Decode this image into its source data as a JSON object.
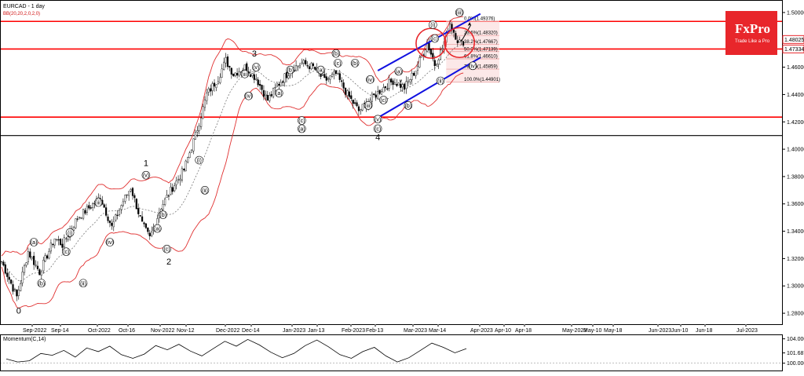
{
  "header": {
    "symbol_label": "EURCAD - 1 day",
    "indicator_label": "BB(20,20,2,0,2,0)"
  },
  "momentum_panel": {
    "label": "Momentum(C,14)",
    "ticks": [
      "104.000",
      "101.687",
      "100.000"
    ]
  },
  "branding": {
    "logo_text": "FxPro",
    "tagline": "Trade Like a Pro"
  },
  "colors": {
    "up": "#2e9d3a",
    "down": "#000000",
    "bands": "#e03030",
    "levels": "#ff0000",
    "channel": "#1010e0",
    "logo_bg": "#e8262b"
  },
  "chart_data": {
    "type": "candlestick",
    "title": "EURCAD - 1 day",
    "price_axis": {
      "ticks": [
        1.28,
        1.3,
        1.32,
        1.34,
        1.36,
        1.38,
        1.4,
        1.42,
        1.44,
        1.46,
        1.48,
        1.5
      ],
      "ylim": [
        1.272,
        1.508
      ],
      "current_price_label": "1.48025",
      "current_price_value": 1.48025,
      "second_price_label": "1.47334",
      "second_price_value": 1.47334
    },
    "time_axis": {
      "ticks": [
        "Sep-2022",
        "Sep-14",
        "Oct-2022",
        "Oct-16",
        "Nov-2022",
        "Nov-12",
        "Dec-2022",
        "Dec-14",
        "Jan-2023",
        "Jan-13",
        "Feb-2023",
        "Feb-13",
        "Mar-2023",
        "Mar-14",
        "Apr-2023",
        "Apr-10",
        "Apr-18",
        "May-2023",
        "May-10",
        "May-18",
        "Jun-2023",
        "Jun-10",
        "Jun-18",
        "Jul-2023"
      ]
    },
    "anchors": [
      {
        "i": 0,
        "p": 1.318
      },
      {
        "i": 8,
        "p": 1.292
      },
      {
        "i": 14,
        "p": 1.325
      },
      {
        "i": 20,
        "p": 1.31
      },
      {
        "i": 28,
        "p": 1.335
      },
      {
        "i": 32,
        "p": 1.33
      },
      {
        "i": 40,
        "p": 1.35
      },
      {
        "i": 46,
        "p": 1.357
      },
      {
        "i": 52,
        "p": 1.365
      },
      {
        "i": 58,
        "p": 1.343
      },
      {
        "i": 64,
        "p": 1.362
      },
      {
        "i": 68,
        "p": 1.372
      },
      {
        "i": 74,
        "p": 1.345
      },
      {
        "i": 78,
        "p": 1.335
      },
      {
        "i": 84,
        "p": 1.358
      },
      {
        "i": 90,
        "p": 1.372
      },
      {
        "i": 96,
        "p": 1.385
      },
      {
        "i": 102,
        "p": 1.41
      },
      {
        "i": 108,
        "p": 1.44
      },
      {
        "i": 114,
        "p": 1.452
      },
      {
        "i": 118,
        "p": 1.465
      },
      {
        "i": 122,
        "p": 1.455
      },
      {
        "i": 128,
        "p": 1.46
      },
      {
        "i": 134,
        "p": 1.452
      },
      {
        "i": 140,
        "p": 1.436
      },
      {
        "i": 146,
        "p": 1.448
      },
      {
        "i": 152,
        "p": 1.458
      },
      {
        "i": 158,
        "p": 1.463
      },
      {
        "i": 164,
        "p": 1.46
      },
      {
        "i": 170,
        "p": 1.45
      },
      {
        "i": 176,
        "p": 1.455
      },
      {
        "i": 182,
        "p": 1.44
      },
      {
        "i": 188,
        "p": 1.428
      },
      {
        "i": 194,
        "p": 1.436
      },
      {
        "i": 200,
        "p": 1.444
      },
      {
        "i": 206,
        "p": 1.45
      },
      {
        "i": 212,
        "p": 1.445
      },
      {
        "i": 218,
        "p": 1.458
      },
      {
        "i": 224,
        "p": 1.478
      },
      {
        "i": 228,
        "p": 1.462
      },
      {
        "i": 232,
        "p": 1.474
      },
      {
        "i": 236,
        "p": 1.492
      },
      {
        "i": 240,
        "p": 1.48
      },
      {
        "i": 243,
        "p": 1.476
      }
    ],
    "fibonacci_levels": [
      {
        "label": "0.0%(1.49376)",
        "value": 1.49376
      },
      {
        "label": "23.6%(1.48320)",
        "value": 1.4832
      },
      {
        "label": "38.2%(1.47667)",
        "value": 1.47667
      },
      {
        "label": "50.0%(1.47139)",
        "value": 1.47139
      },
      {
        "label": "61.8%(1.46610)",
        "value": 1.4661
      },
      {
        "label": "78.6%(1.45859)",
        "value": 1.45859
      },
      {
        "label": "100.0%(1.44901)",
        "value": 1.44901
      }
    ],
    "horizontal_levels": [
      {
        "value": 1.4935,
        "color": "#ff0000"
      },
      {
        "value": 1.4733,
        "color": "#ff0000"
      },
      {
        "value": 1.4235,
        "color": "#ff0000"
      },
      {
        "value": 1.41,
        "color": "#000000"
      }
    ],
    "channel": {
      "upper": [
        [
          198,
          1.4575
        ],
        [
          252,
          1.499
        ]
      ],
      "lower": [
        [
          198,
          1.423
        ],
        [
          252,
          1.467
        ]
      ]
    },
    "circles": [
      {
        "i": 226,
        "p": 1.4775
      },
      {
        "i": 241,
        "p": 1.478
      }
    ],
    "wave_labels": [
      {
        "text": "0",
        "i": 9,
        "p": 1.282,
        "big": true
      },
      {
        "text": "(a)",
        "i": 17,
        "p": 1.332,
        "circ": true
      },
      {
        "text": "(b)",
        "i": 21,
        "p": 1.302,
        "circ": true
      },
      {
        "text": "(c)",
        "i": 34,
        "p": 1.325,
        "circ": true
      },
      {
        "text": "(i)",
        "i": 36,
        "p": 1.339,
        "circ": true
      },
      {
        "text": "(ii)",
        "i": 43,
        "p": 1.302,
        "circ": true
      },
      {
        "text": "(iii)",
        "i": 51,
        "p": 1.361,
        "circ": true
      },
      {
        "text": "(iv)",
        "i": 57,
        "p": 1.332,
        "circ": true
      },
      {
        "text": "(v)",
        "i": 76,
        "p": 1.381,
        "circ": true
      },
      {
        "text": "1",
        "i": 76,
        "p": 1.39,
        "big": true
      },
      {
        "text": "(a)",
        "i": 82,
        "p": 1.342,
        "circ": true
      },
      {
        "text": "(b)",
        "i": 85,
        "p": 1.352,
        "circ": true
      },
      {
        "text": "(c)",
        "i": 87,
        "p": 1.327,
        "circ": true
      },
      {
        "text": "2",
        "i": 88,
        "p": 1.318,
        "big": true
      },
      {
        "text": "(i)",
        "i": 104,
        "p": 1.392,
        "circ": true
      },
      {
        "text": "(ii)",
        "i": 107,
        "p": 1.37,
        "circ": true
      },
      {
        "text": "(iii)",
        "i": 128,
        "p": 1.455,
        "circ": true
      },
      {
        "text": "(iv)",
        "i": 130,
        "p": 1.439,
        "circ": true
      },
      {
        "text": "(v)",
        "i": 134,
        "p": 1.46,
        "circ": true
      },
      {
        "text": "3",
        "i": 133,
        "p": 1.47,
        "big": true
      },
      {
        "text": "(a)",
        "i": 146,
        "p": 1.441,
        "circ": true
      },
      {
        "text": "(b)",
        "i": 152,
        "p": 1.458,
        "circ": true
      },
      {
        "text": "(c)",
        "i": 158,
        "p": 1.421,
        "circ": true
      },
      {
        "text": "(a)",
        "i": 158,
        "p": 1.415,
        "circ": true
      },
      {
        "text": "(b)",
        "i": 176,
        "p": 1.47,
        "circ": true
      },
      {
        "text": "(c)",
        "i": 177,
        "p": 1.463,
        "circ": true
      },
      {
        "text": "(a)",
        "i": 168,
        "p": 1.458,
        "circ": true
      },
      {
        "text": "(b)",
        "i": 186,
        "p": 1.463,
        "circ": true
      },
      {
        "text": "(iv)",
        "i": 194,
        "p": 1.451,
        "circ": true
      },
      {
        "text": "(iii)",
        "i": 193,
        "p": 1.432,
        "circ": true
      },
      {
        "text": "(v)",
        "i": 198,
        "p": 1.422,
        "circ": true
      },
      {
        "text": "(c)",
        "i": 198,
        "p": 1.415,
        "circ": true
      },
      {
        "text": "4",
        "i": 198,
        "p": 1.409,
        "big": true
      },
      {
        "text": "(a)",
        "i": 209,
        "p": 1.457,
        "circ": true
      },
      {
        "text": "v",
        "i": 210,
        "p": 1.45,
        "circ": false
      },
      {
        "text": "(c)",
        "i": 201,
        "p": 1.436,
        "circ": true
      },
      {
        "text": "(b)",
        "i": 214,
        "p": 1.432,
        "circ": true
      },
      {
        "text": "(i)",
        "i": 227,
        "p": 1.491,
        "circ": true
      },
      {
        "text": "(ii)",
        "i": 231,
        "p": 1.45,
        "circ": true
      },
      {
        "text": "(c)",
        "i": 228,
        "p": 1.481,
        "circ": true
      },
      {
        "text": "(iii)",
        "i": 241,
        "p": 1.5,
        "circ": true
      },
      {
        "text": "(iv)",
        "i": 248,
        "p": 1.461,
        "circ": true
      }
    ],
    "momentum": {
      "ylim": [
        98.8,
        104.6
      ],
      "values": [
        100.7,
        100.2,
        100.4,
        101.6,
        101.3,
        102.1,
        101.0,
        102.5,
        101.9,
        102.8,
        101.4,
        100.8,
        101.5,
        102.9,
        102.2,
        103.1,
        102.0,
        101.2,
        102.4,
        103.6,
        102.8,
        103.9,
        103.0,
        101.8,
        100.9,
        101.6,
        102.9,
        103.8,
        102.7,
        101.4,
        100.8,
        101.9,
        102.6,
        101.2,
        100.2,
        100.9,
        102.1,
        103.3,
        102.6,
        101.7,
        102.4
      ]
    }
  }
}
